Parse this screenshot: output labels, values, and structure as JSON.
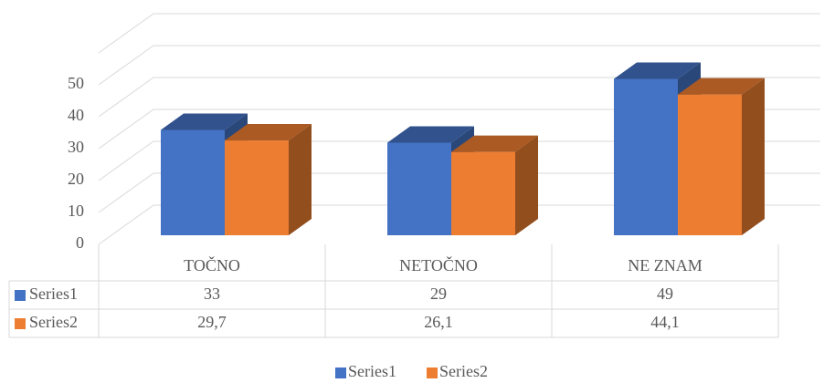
{
  "chart_data": {
    "type": "bar3d",
    "categories": [
      "TOČNO",
      "NETOČNO",
      "NE ZNAM"
    ],
    "series": [
      {
        "name": "Series1",
        "color": "#4472c4",
        "values": [
          33,
          29,
          49
        ]
      },
      {
        "name": "Series2",
        "color": "#ed7d31",
        "values": [
          29.7,
          26.1,
          44.1
        ],
        "value_labels": [
          "29,7",
          "26,1",
          "44,1"
        ]
      }
    ],
    "ylim": [
      0,
      60
    ],
    "yticks": [
      0,
      10,
      20,
      30,
      40,
      50
    ],
    "grid": true,
    "legend": "bottom",
    "data_table": true
  }
}
